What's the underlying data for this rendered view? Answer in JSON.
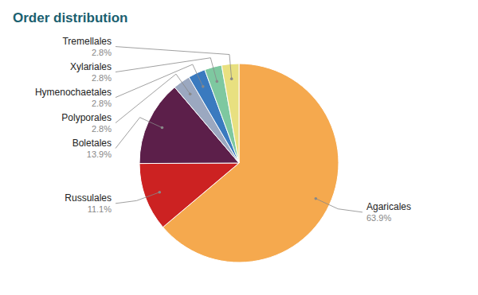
{
  "chart_data": {
    "type": "pie",
    "title": "Order distribution",
    "categories": [
      "Agaricales",
      "Russulales",
      "Boletales",
      "Polyporales",
      "Hymenochaetales",
      "Xylariales",
      "Tremellales"
    ],
    "values": [
      63.9,
      11.1,
      13.9,
      2.8,
      2.8,
      2.8,
      2.8
    ],
    "value_labels": [
      "63.9%",
      "11.1%",
      "13.9%",
      "2.8%",
      "2.8%",
      "2.8%",
      "2.8%"
    ],
    "colors": [
      "#f5a94e",
      "#cc2222",
      "#5c1f4a",
      "#9ba8c0",
      "#3a7abf",
      "#7ec8a0",
      "#e8e080"
    ],
    "data_labels": true
  }
}
